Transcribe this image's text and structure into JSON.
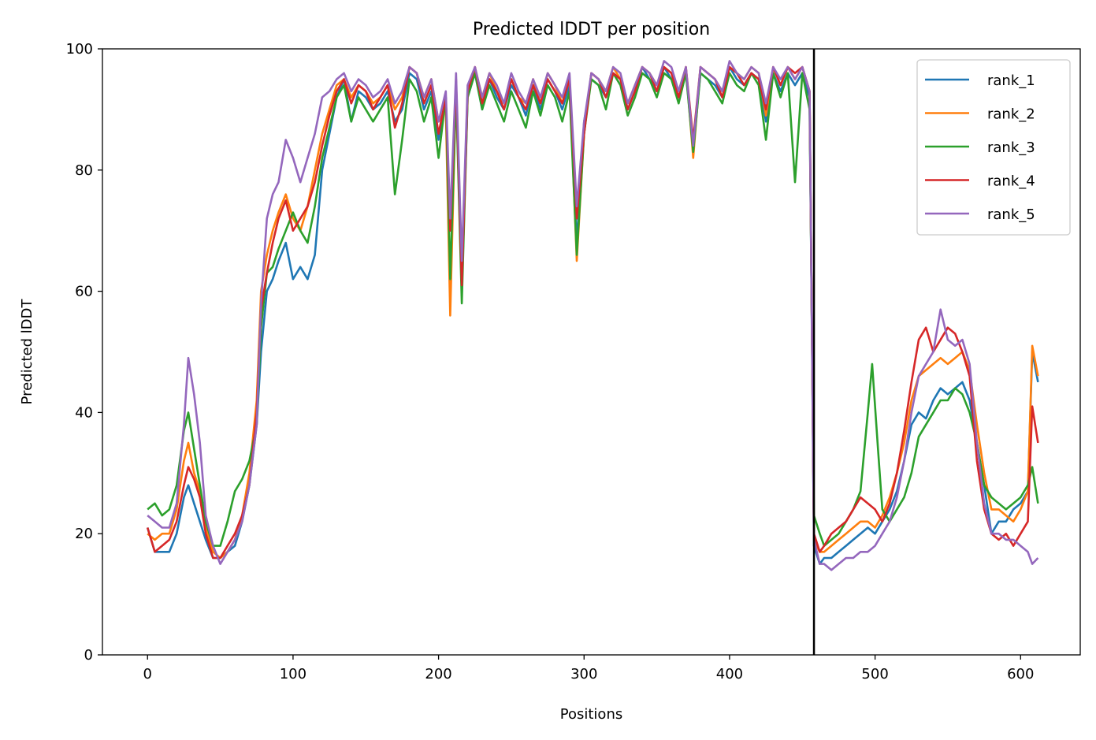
{
  "chart_data": {
    "type": "line",
    "title": "Predicted lDDT per position",
    "xlabel": "Positions",
    "ylabel": "Predicted lDDT",
    "xlim": [
      -31,
      641
    ],
    "ylim": [
      0,
      100
    ],
    "xticks": [
      0,
      100,
      200,
      300,
      400,
      500,
      600
    ],
    "yticks": [
      0,
      20,
      40,
      60,
      80,
      100
    ],
    "vline_x": 458,
    "legend_position": "top-right",
    "grid": false,
    "colors": [
      "#1f77b4",
      "#ff7f0e",
      "#2ca02c",
      "#d62728",
      "#9467bd"
    ],
    "series": [
      {
        "name": "rank_1",
        "x": [
          0,
          5,
          10,
          15,
          20,
          25,
          28,
          32,
          36,
          40,
          45,
          50,
          55,
          60,
          65,
          70,
          75,
          78,
          82,
          86,
          90,
          95,
          100,
          105,
          110,
          115,
          120,
          125,
          130,
          135,
          140,
          145,
          150,
          155,
          160,
          165,
          170,
          175,
          180,
          185,
          190,
          195,
          200,
          205,
          208,
          212,
          216,
          220,
          225,
          230,
          235,
          240,
          245,
          250,
          255,
          260,
          265,
          270,
          275,
          280,
          285,
          290,
          295,
          300,
          305,
          310,
          315,
          320,
          325,
          330,
          335,
          340,
          345,
          350,
          355,
          360,
          365,
          370,
          375,
          380,
          385,
          390,
          395,
          400,
          405,
          410,
          415,
          420,
          425,
          430,
          435,
          440,
          445,
          450,
          455,
          458,
          462,
          465,
          470,
          475,
          480,
          485,
          490,
          495,
          500,
          505,
          510,
          515,
          520,
          525,
          530,
          535,
          540,
          545,
          550,
          555,
          560,
          565,
          570,
          575,
          580,
          585,
          590,
          595,
          600,
          605,
          608,
          612
        ],
        "y": [
          21,
          17,
          17,
          17,
          20,
          26,
          28,
          25,
          22,
          19,
          16,
          16,
          17,
          18,
          22,
          28,
          38,
          50,
          60,
          62,
          65,
          68,
          62,
          64,
          62,
          66,
          80,
          86,
          92,
          95,
          88,
          93,
          92,
          90,
          91,
          93,
          88,
          90,
          96,
          95,
          90,
          93,
          85,
          92,
          70,
          94,
          60,
          92,
          96,
          90,
          95,
          92,
          90,
          94,
          92,
          89,
          94,
          90,
          95,
          93,
          90,
          94,
          68,
          88,
          95,
          94,
          92,
          96,
          95,
          90,
          93,
          97,
          95,
          93,
          97,
          95,
          92,
          96,
          84,
          96,
          95,
          94,
          92,
          97,
          95,
          94,
          96,
          95,
          88,
          96,
          93,
          96,
          94,
          96,
          92,
          18,
          15,
          16,
          16,
          17,
          18,
          19,
          20,
          21,
          20,
          22,
          24,
          27,
          32,
          38,
          40,
          39,
          42,
          44,
          43,
          44,
          45,
          42,
          35,
          28,
          20,
          22,
          22,
          24,
          25,
          27,
          50,
          45
        ]
      },
      {
        "name": "rank_2",
        "x": [
          0,
          5,
          10,
          15,
          20,
          25,
          28,
          32,
          36,
          40,
          45,
          50,
          55,
          60,
          65,
          70,
          75,
          78,
          82,
          86,
          90,
          95,
          100,
          105,
          110,
          115,
          120,
          125,
          130,
          135,
          140,
          145,
          150,
          155,
          160,
          165,
          170,
          175,
          180,
          185,
          190,
          195,
          200,
          205,
          208,
          212,
          216,
          220,
          225,
          230,
          235,
          240,
          245,
          250,
          255,
          260,
          265,
          270,
          275,
          280,
          285,
          290,
          295,
          300,
          305,
          310,
          315,
          320,
          325,
          330,
          335,
          340,
          345,
          350,
          355,
          360,
          365,
          370,
          375,
          380,
          385,
          390,
          395,
          400,
          405,
          410,
          415,
          420,
          425,
          430,
          435,
          440,
          445,
          450,
          455,
          458,
          462,
          465,
          470,
          475,
          480,
          485,
          490,
          495,
          500,
          505,
          510,
          515,
          520,
          525,
          530,
          535,
          540,
          545,
          550,
          555,
          560,
          565,
          570,
          575,
          580,
          585,
          590,
          595,
          600,
          605,
          608,
          612
        ],
        "y": [
          20,
          19,
          20,
          20,
          24,
          32,
          35,
          30,
          27,
          21,
          17,
          16,
          17,
          19,
          23,
          30,
          42,
          60,
          66,
          70,
          73,
          76,
          72,
          70,
          74,
          80,
          86,
          90,
          94,
          95,
          92,
          94,
          93,
          91,
          92,
          94,
          90,
          92,
          97,
          96,
          92,
          95,
          88,
          90,
          56,
          94,
          62,
          93,
          97,
          92,
          96,
          93,
          91,
          95,
          92,
          91,
          95,
          91,
          96,
          94,
          91,
          95,
          65,
          86,
          96,
          95,
          93,
          97,
          95,
          91,
          94,
          97,
          96,
          94,
          97,
          96,
          93,
          97,
          82,
          97,
          96,
          95,
          93,
          97,
          96,
          95,
          97,
          96,
          89,
          97,
          94,
          97,
          95,
          97,
          93,
          19,
          17,
          17,
          18,
          19,
          20,
          21,
          22,
          22,
          21,
          23,
          26,
          30,
          35,
          42,
          46,
          47,
          48,
          49,
          48,
          49,
          50,
          47,
          38,
          30,
          24,
          24,
          23,
          22,
          24,
          27,
          51,
          46
        ]
      },
      {
        "name": "rank_3",
        "x": [
          0,
          5,
          10,
          15,
          20,
          25,
          28,
          32,
          36,
          40,
          45,
          50,
          55,
          60,
          65,
          70,
          75,
          78,
          82,
          86,
          90,
          95,
          100,
          105,
          110,
          115,
          120,
          125,
          130,
          135,
          140,
          145,
          150,
          155,
          160,
          165,
          170,
          175,
          180,
          185,
          190,
          195,
          200,
          205,
          208,
          212,
          216,
          220,
          225,
          230,
          235,
          240,
          245,
          250,
          255,
          260,
          265,
          270,
          275,
          280,
          285,
          290,
          295,
          300,
          305,
          310,
          315,
          320,
          325,
          330,
          335,
          340,
          345,
          350,
          355,
          360,
          365,
          370,
          375,
          380,
          385,
          390,
          395,
          400,
          405,
          410,
          415,
          420,
          425,
          430,
          435,
          440,
          445,
          450,
          455,
          458,
          462,
          465,
          470,
          475,
          480,
          485,
          490,
          495,
          498,
          502,
          505,
          510,
          515,
          520,
          525,
          530,
          535,
          540,
          545,
          550,
          555,
          560,
          565,
          570,
          575,
          580,
          585,
          590,
          595,
          600,
          605,
          608,
          612
        ],
        "y": [
          24,
          25,
          23,
          24,
          28,
          37,
          40,
          34,
          28,
          22,
          18,
          18,
          22,
          27,
          29,
          32,
          38,
          54,
          63,
          64,
          67,
          70,
          73,
          70,
          68,
          74,
          82,
          87,
          92,
          94,
          88,
          92,
          90,
          88,
          90,
          92,
          76,
          85,
          95,
          93,
          88,
          92,
          82,
          92,
          62,
          93,
          58,
          92,
          96,
          90,
          94,
          91,
          88,
          93,
          90,
          87,
          93,
          89,
          94,
          92,
          88,
          93,
          66,
          86,
          95,
          94,
          90,
          96,
          94,
          89,
          92,
          96,
          95,
          92,
          96,
          95,
          91,
          96,
          83,
          96,
          95,
          93,
          91,
          96,
          94,
          93,
          96,
          94,
          85,
          96,
          92,
          96,
          78,
          96,
          90,
          23,
          20,
          18,
          19,
          20,
          22,
          24,
          27,
          40,
          48,
          34,
          24,
          22,
          24,
          26,
          30,
          36,
          38,
          40,
          42,
          42,
          44,
          43,
          40,
          35,
          28,
          26,
          25,
          24,
          25,
          26,
          28,
          31,
          25
        ]
      },
      {
        "name": "rank_4",
        "x": [
          0,
          5,
          10,
          15,
          20,
          25,
          28,
          32,
          36,
          40,
          45,
          50,
          55,
          60,
          65,
          70,
          75,
          78,
          82,
          86,
          90,
          95,
          100,
          105,
          110,
          115,
          120,
          125,
          130,
          135,
          140,
          145,
          150,
          155,
          160,
          165,
          170,
          175,
          180,
          185,
          190,
          195,
          200,
          205,
          208,
          212,
          216,
          220,
          225,
          230,
          235,
          240,
          245,
          250,
          255,
          260,
          265,
          270,
          275,
          280,
          285,
          290,
          295,
          300,
          305,
          310,
          315,
          320,
          325,
          330,
          335,
          340,
          345,
          350,
          355,
          360,
          365,
          370,
          375,
          380,
          385,
          390,
          395,
          400,
          405,
          410,
          415,
          420,
          425,
          430,
          435,
          440,
          445,
          450,
          455,
          458,
          462,
          465,
          470,
          475,
          480,
          485,
          490,
          495,
          500,
          505,
          510,
          515,
          520,
          525,
          530,
          535,
          540,
          545,
          550,
          555,
          560,
          565,
          570,
          575,
          580,
          585,
          590,
          595,
          600,
          605,
          608,
          612
        ],
        "y": [
          21,
          17,
          18,
          19,
          22,
          28,
          31,
          29,
          26,
          20,
          16,
          16,
          18,
          20,
          23,
          28,
          40,
          57,
          63,
          68,
          72,
          75,
          70,
          72,
          74,
          78,
          84,
          89,
          93,
          95,
          91,
          94,
          93,
          90,
          92,
          94,
          87,
          91,
          97,
          96,
          91,
          94,
          86,
          92,
          70,
          95,
          61,
          93,
          97,
          91,
          95,
          93,
          90,
          95,
          92,
          90,
          94,
          91,
          95,
          93,
          91,
          95,
          72,
          86,
          96,
          95,
          92,
          96,
          95,
          90,
          93,
          97,
          96,
          93,
          97,
          96,
          92,
          97,
          85,
          97,
          96,
          95,
          92,
          97,
          96,
          94,
          96,
          95,
          90,
          97,
          94,
          97,
          96,
          97,
          93,
          20,
          17,
          18,
          20,
          21,
          22,
          24,
          26,
          25,
          24,
          22,
          25,
          30,
          37,
          45,
          52,
          54,
          50,
          52,
          54,
          53,
          50,
          46,
          32,
          24,
          20,
          19,
          20,
          18,
          20,
          22,
          41,
          35
        ]
      },
      {
        "name": "rank_5",
        "x": [
          0,
          5,
          10,
          15,
          20,
          25,
          28,
          32,
          36,
          40,
          45,
          50,
          55,
          60,
          65,
          70,
          75,
          78,
          82,
          86,
          90,
          95,
          100,
          105,
          110,
          115,
          120,
          125,
          130,
          135,
          140,
          145,
          150,
          155,
          160,
          165,
          170,
          175,
          180,
          185,
          190,
          195,
          200,
          205,
          208,
          212,
          216,
          220,
          225,
          230,
          235,
          240,
          245,
          250,
          255,
          260,
          265,
          270,
          275,
          280,
          285,
          290,
          295,
          300,
          305,
          310,
          315,
          320,
          325,
          330,
          335,
          340,
          345,
          350,
          355,
          360,
          365,
          370,
          375,
          380,
          385,
          390,
          395,
          400,
          405,
          410,
          415,
          420,
          425,
          430,
          435,
          440,
          445,
          450,
          455,
          458,
          462,
          465,
          470,
          475,
          480,
          485,
          490,
          495,
          500,
          505,
          510,
          515,
          520,
          525,
          530,
          535,
          540,
          545,
          550,
          555,
          560,
          565,
          570,
          575,
          580,
          585,
          590,
          595,
          600,
          605,
          608,
          612
        ],
        "y": [
          23,
          22,
          21,
          21,
          25,
          38,
          49,
          43,
          35,
          23,
          18,
          15,
          17,
          19,
          22,
          28,
          38,
          58,
          72,
          76,
          78,
          85,
          82,
          78,
          82,
          86,
          92,
          93,
          95,
          96,
          93,
          95,
          94,
          92,
          93,
          95,
          91,
          93,
          97,
          96,
          92,
          95,
          88,
          93,
          72,
          96,
          65,
          94,
          97,
          92,
          96,
          94,
          91,
          96,
          93,
          91,
          95,
          92,
          96,
          94,
          92,
          96,
          74,
          88,
          96,
          95,
          93,
          97,
          96,
          91,
          94,
          97,
          96,
          94,
          98,
          97,
          93,
          97,
          84,
          97,
          96,
          95,
          93,
          98,
          96,
          95,
          97,
          96,
          91,
          97,
          95,
          97,
          95,
          97,
          93,
          19,
          15,
          15,
          14,
          15,
          16,
          16,
          17,
          17,
          18,
          20,
          22,
          26,
          32,
          40,
          46,
          48,
          50,
          57,
          52,
          51,
          52,
          48,
          35,
          25,
          20,
          20,
          19,
          19,
          18,
          17,
          15,
          16
        ]
      }
    ]
  }
}
